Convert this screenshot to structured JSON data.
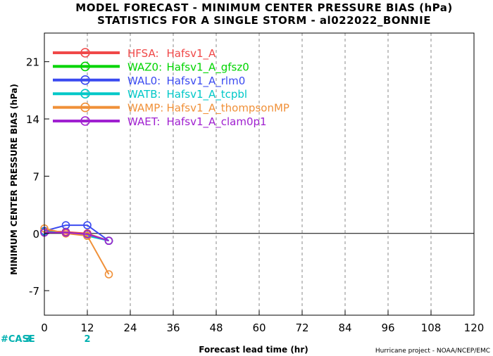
{
  "chart_data": {
    "type": "line",
    "title": "MODEL FORECAST - MINIMUM CENTER PRESSURE BIAS (hPa)",
    "subtitle": "STATISTICS FOR A SINGLE STORM - al022022_BONNIE",
    "xlabel": "Forecast lead time (hr)",
    "ylabel": "MINIMUM CENTER PRESSURE BIAS (hPa)",
    "credit": "Hurricane project - NOAA/NCEP/EMC",
    "xlim": [
      0,
      120
    ],
    "ylim": [
      -10,
      24.5
    ],
    "x_ticks": [
      0,
      12,
      24,
      36,
      48,
      60,
      72,
      84,
      96,
      108,
      120
    ],
    "y_ticks": [
      -7,
      0,
      7,
      14,
      21
    ],
    "x_tick_labels": [
      "0",
      "12",
      "24",
      "36",
      "48",
      "60",
      "72",
      "84",
      "96",
      "108",
      "120"
    ],
    "y_tick_labels": [
      "-7",
      "0",
      "7",
      "14",
      "21"
    ],
    "zero_line": true,
    "grid": "vertical dashed",
    "legend_position": "top-left",
    "series": [
      {
        "name": "HFSA",
        "label_model": "HFSA:",
        "label_exp": "Hafsv1_A",
        "color": "#f04848",
        "x": [
          0,
          6,
          12,
          18
        ],
        "y": [
          0.3,
          0.2,
          0.0,
          -0.9
        ]
      },
      {
        "name": "WAZ0",
        "label_model": "WAZ0:",
        "label_exp": "Hafsv1_A_gfsz0",
        "color": "#00d400",
        "x": [
          0,
          6,
          12,
          18
        ],
        "y": [
          0.2,
          0.1,
          -0.1,
          -0.9
        ]
      },
      {
        "name": "WAL0",
        "label_model": "WAL0:",
        "label_exp": "Hafsv1_A_rlm0",
        "color": "#3a4af0",
        "x": [
          0,
          6,
          12,
          18
        ],
        "y": [
          0.3,
          1.0,
          1.0,
          -0.9
        ]
      },
      {
        "name": "WATB",
        "label_model": "WATB:",
        "label_exp": "Hafsv1_A_tcpbl",
        "color": "#00c8c8",
        "x": [
          0,
          6,
          12,
          18
        ],
        "y": [
          0.2,
          0.1,
          -0.3,
          -0.9
        ]
      },
      {
        "name": "WAMP",
        "label_model": "WAMP:",
        "label_exp": "Hafsv1_A_thompsonMP",
        "color": "#f09038",
        "x": [
          0,
          6,
          12,
          18
        ],
        "y": [
          0.6,
          0.0,
          -0.3,
          -5.0
        ]
      },
      {
        "name": "WAET",
        "label_model": "WAET:",
        "label_exp": "Hafsv1_A_clam0p1",
        "color": "#a020d0",
        "x": [
          0,
          6,
          12,
          18
        ],
        "y": [
          0.1,
          0.1,
          -0.1,
          -0.9
        ]
      }
    ],
    "case_label": "#CASE",
    "case_counts": [
      {
        "x": 0,
        "count": "3"
      },
      {
        "x": 12,
        "count": "2"
      }
    ],
    "case_color": "#00b0b0"
  }
}
